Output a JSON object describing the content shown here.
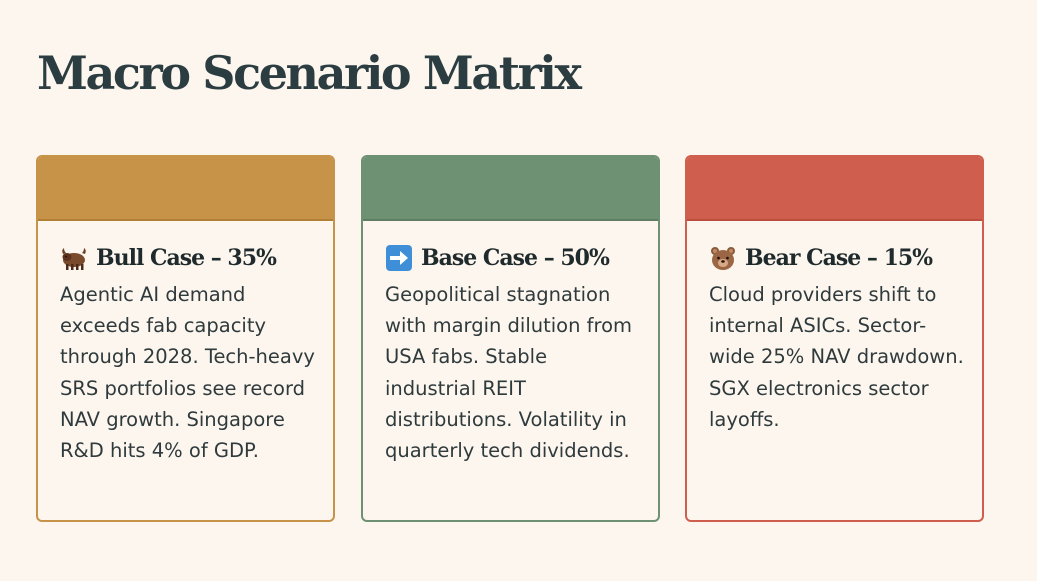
{
  "page": {
    "title": "Macro Scenario Matrix"
  },
  "colors": {
    "bull": "#c79348",
    "base": "#6e9173",
    "bear": "#cf5e4f",
    "background": "#fdf6ef",
    "title": "#2b3d40"
  },
  "cards": [
    {
      "icon": "bull-icon",
      "title": "Bull Case – 35%",
      "body": "Agentic AI demand exceeds fab capacity through 2028. Tech-heavy SRS portfolios see record NAV growth. Singapore R&D hits 4% of GDP."
    },
    {
      "icon": "right-arrow-icon",
      "title": "Base Case – 50%",
      "body": "Geopolitical stagnation with margin dilution from USA fabs. Stable industrial REIT distributions. Volatility in quarterly tech dividends."
    },
    {
      "icon": "bear-icon",
      "title": "Bear Case – 15%",
      "body": "Cloud providers shift to internal ASICs. Sector-wide 25% NAV drawdown. SGX electronics sector layoffs."
    }
  ]
}
